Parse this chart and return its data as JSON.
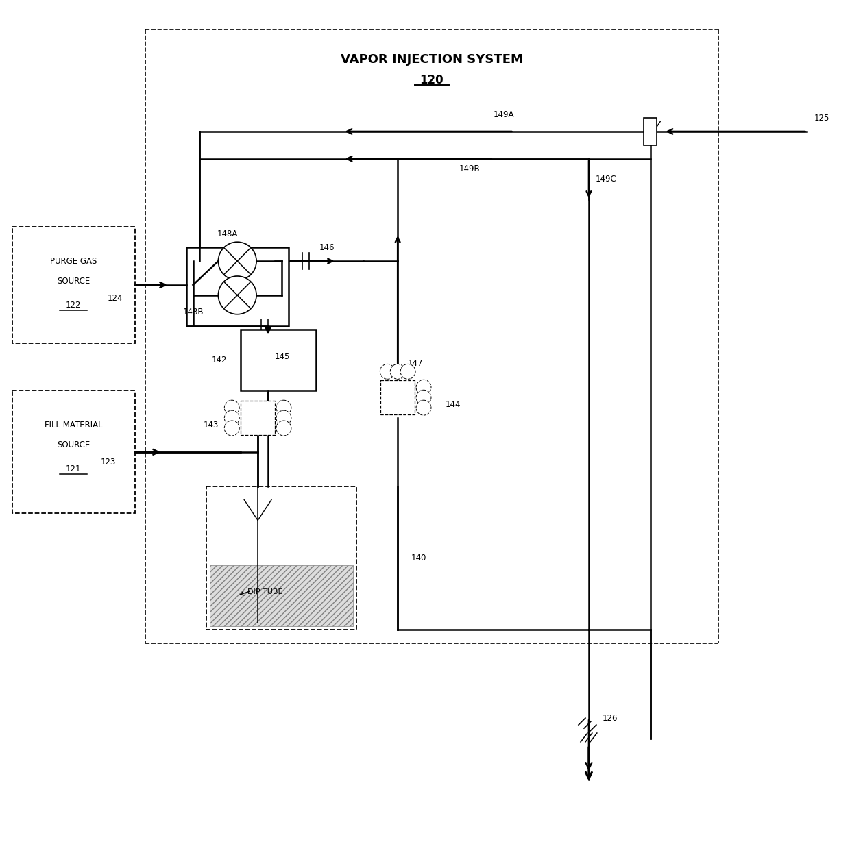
{
  "title": "VAPOR INJECTION SYSTEM",
  "title_num": "120",
  "figsize": [
    12.4,
    12.48
  ],
  "dpi": 100,
  "labels": {
    "purge_gas_1": "PURGE GAS",
    "purge_gas_2": "SOURCE",
    "purge_gas_3": "122",
    "fill_mat_1": "FILL MATERIAL",
    "fill_mat_2": "SOURCE",
    "fill_mat_3": "121",
    "dip_tube": "DIP TUBE",
    "n124": "124",
    "n123": "123",
    "n125": "125",
    "n126": "126",
    "n140": "140",
    "n142": "142",
    "n143": "143",
    "n144": "144",
    "n145": "145",
    "n146": "146",
    "n147": "147",
    "n148A": "148A",
    "n148B": "148B",
    "n149A": "149A",
    "n149B": "149B",
    "n149C": "149C"
  }
}
